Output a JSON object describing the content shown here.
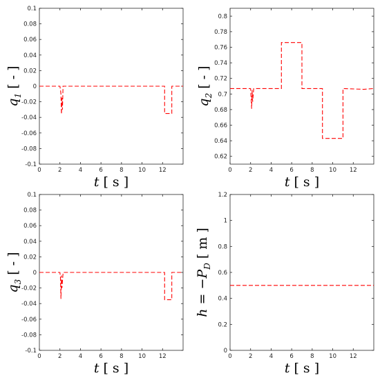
{
  "chart_data": [
    {
      "type": "line",
      "ylabel": {
        "main": "q",
        "sub": "1",
        "unit": "[ - ]"
      },
      "xlabel": {
        "main": "t",
        "unit": "[ s ]"
      },
      "xlim": [
        0,
        14
      ],
      "ylim": [
        -0.1,
        0.1
      ],
      "xticks": [
        "0",
        "2",
        "4",
        "6",
        "8",
        "10",
        "12"
      ],
      "yticks": [
        "-0.1",
        "-0.08",
        "-0.06",
        "-0.04",
        "-0.02",
        "0",
        "0.02",
        "0.04",
        "0.06",
        "0.08",
        "0.1"
      ],
      "grid": false,
      "series": [
        {
          "color": "#ff0000",
          "style": "dashed",
          "x": [
            0,
            2.0,
            2.05,
            2.1,
            2.15,
            2.2,
            2.25,
            2.3,
            2.3,
            12.2,
            12.2,
            12.9,
            12.9,
            14
          ],
          "y": [
            0,
            0,
            -0.004,
            -0.01,
            -0.036,
            -0.015,
            -0.03,
            -0.002,
            0,
            0,
            -0.035,
            -0.035,
            0,
            0
          ]
        }
      ]
    },
    {
      "type": "line",
      "ylabel": {
        "main": "q",
        "sub": "2",
        "unit": "[ - ]"
      },
      "xlabel": {
        "main": "t",
        "unit": "[ s ]"
      },
      "xlim": [
        0,
        14
      ],
      "ylim": [
        0.61,
        0.81
      ],
      "xticks": [
        "0",
        "2",
        "4",
        "6",
        "8",
        "10",
        "12"
      ],
      "yticks": [
        "0.62",
        "0.64",
        "0.66",
        "0.68",
        "0.7",
        "0.72",
        "0.74",
        "0.76",
        "0.78",
        "0.8"
      ],
      "grid": false,
      "series": [
        {
          "color": "#ff0000",
          "style": "dashed",
          "x": [
            0,
            2.0,
            2.05,
            2.1,
            2.15,
            2.2,
            2.3,
            2.3,
            5.0,
            5.0,
            7.0,
            7.0,
            9.0,
            9.0,
            11.0,
            11.0,
            13.0,
            14
          ],
          "y": [
            0.707,
            0.707,
            0.695,
            0.681,
            0.705,
            0.69,
            0.707,
            0.707,
            0.707,
            0.766,
            0.766,
            0.707,
            0.707,
            0.643,
            0.643,
            0.707,
            0.706,
            0.707
          ]
        }
      ]
    },
    {
      "type": "line",
      "ylabel": {
        "main": "q",
        "sub": "3",
        "unit": "[ - ]"
      },
      "xlabel": {
        "main": "t",
        "unit": "[ s ]"
      },
      "xlim": [
        0,
        14
      ],
      "ylim": [
        -0.1,
        0.1
      ],
      "xticks": [
        "0",
        "2",
        "4",
        "6",
        "8",
        "10",
        "12"
      ],
      "yticks": [
        "-0.1",
        "-0.08",
        "-0.06",
        "-0.04",
        "-0.02",
        "0",
        "0.02",
        "0.04",
        "0.06",
        "0.08",
        "0.1"
      ],
      "grid": false,
      "series": [
        {
          "color": "#ff0000",
          "style": "dashed",
          "x": [
            0,
            2.0,
            2.05,
            2.1,
            2.15,
            2.2,
            2.3,
            2.3,
            12.2,
            12.2,
            12.9,
            12.9,
            14
          ],
          "y": [
            0,
            0,
            -0.006,
            -0.034,
            -0.004,
            -0.02,
            -0.002,
            0,
            0,
            -0.035,
            -0.035,
            0,
            0
          ]
        }
      ]
    },
    {
      "type": "line",
      "ylabel": {
        "main": "h = −P",
        "sub": "D",
        "unit": "[ m ]"
      },
      "xlabel": {
        "main": "t",
        "unit": "[ s ]"
      },
      "xlim": [
        0,
        14
      ],
      "ylim": [
        0,
        1.2
      ],
      "xticks": [
        "0",
        "2",
        "4",
        "6",
        "8",
        "10",
        "12"
      ],
      "yticks": [
        "0",
        "0.2",
        "0.4",
        "0.6",
        "0.8",
        "1",
        "1.2"
      ],
      "grid": false,
      "series": [
        {
          "color": "#ff0000",
          "style": "dashed",
          "x": [
            0,
            14
          ],
          "y": [
            0.5,
            0.5
          ]
        }
      ]
    }
  ]
}
